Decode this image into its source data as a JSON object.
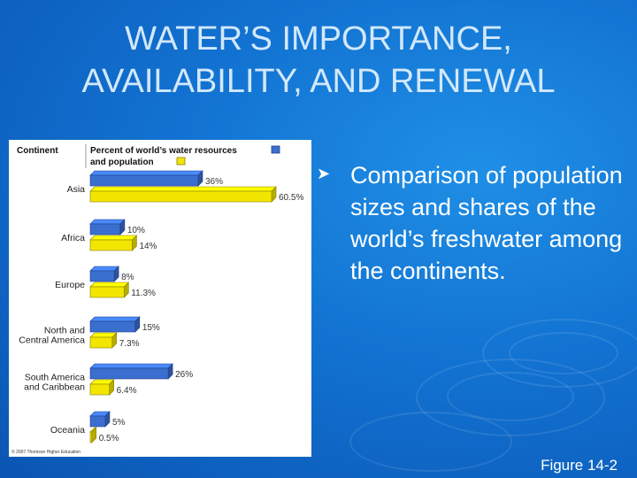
{
  "slide": {
    "title_line1": "WATER’S IMPORTANCE,",
    "title_line2": "AVAILABILITY, AND RENEWAL",
    "bullet_text": "Comparison of population sizes and shares of the world’s freshwater among the continents.",
    "figure_label": "Figure 14-2"
  },
  "colors": {
    "background": "#1272d1",
    "water_bar": "#3a6fcf",
    "population_bar": "#f2e600",
    "title_text": "#d2e8fb"
  },
  "chart_data": {
    "type": "bar",
    "orientation": "horizontal",
    "header_category": "Continent",
    "header_series_line1": "Percent of world’s water resources",
    "header_series_line2": "and population",
    "categories": [
      "Asia",
      "Africa",
      "Europe",
      "North and Central America",
      "South America and Caribbean",
      "Oceania"
    ],
    "category_lines": [
      [
        "Asia"
      ],
      [
        "Africa"
      ],
      [
        "Europe"
      ],
      [
        "North and",
        "Central America"
      ],
      [
        "South America",
        "and Caribbean"
      ],
      [
        "Oceania"
      ]
    ],
    "series": [
      {
        "key": "water",
        "values": [
          36,
          10,
          8,
          15,
          26,
          5
        ],
        "labels": [
          "36%",
          "10%",
          "8%",
          "15%",
          "26%",
          "5%"
        ]
      },
      {
        "key": "population",
        "values": [
          60.5,
          14,
          11.3,
          7.3,
          6.4,
          0.5
        ],
        "labels": [
          "60.5%",
          "14%",
          "11.3%",
          "7.3%",
          "6.4%",
          "0.5%"
        ]
      }
    ],
    "xlim": [
      0,
      60.5
    ],
    "grid": false,
    "legend_placement": "top",
    "copyright": "© 2007 Thomson Higher Education"
  }
}
